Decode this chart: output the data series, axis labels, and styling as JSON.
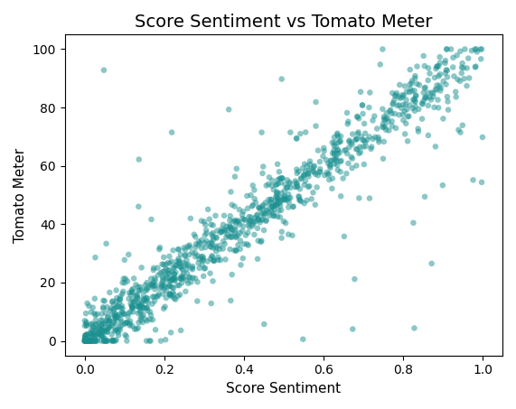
{
  "title": "Score Sentiment vs Tomato Meter",
  "xlabel": "Score Sentiment",
  "ylabel": "Tomato Meter",
  "xlim": [
    -0.05,
    1.05
  ],
  "ylim": [
    -5,
    105
  ],
  "xticks": [
    0.0,
    0.2,
    0.4,
    0.6,
    0.8,
    1.0
  ],
  "yticks": [
    0,
    20,
    40,
    60,
    80,
    100
  ],
  "dot_color": "#1a9090",
  "dot_alpha": 0.5,
  "dot_size": 22,
  "random_seed": 7,
  "background_color": "#ffffff",
  "title_fontsize": 14,
  "label_fontsize": 11
}
